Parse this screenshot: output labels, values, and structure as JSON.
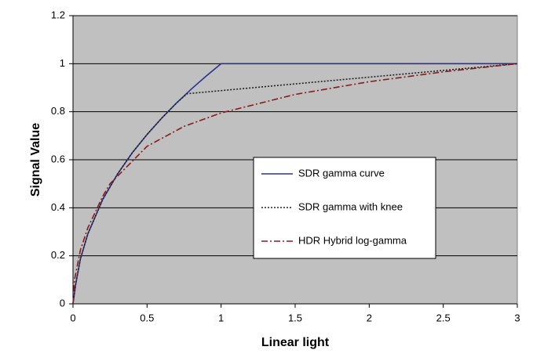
{
  "chart_data": {
    "type": "line",
    "xlabel": "Linear light",
    "ylabel": "Signal Value",
    "xlim": [
      0,
      3
    ],
    "ylim": [
      0,
      1.2
    ],
    "xticks": [
      0,
      0.5,
      1,
      1.5,
      2,
      2.5,
      3
    ],
    "yticks": [
      0,
      0.2,
      0.4,
      0.6,
      0.8,
      1,
      1.2
    ],
    "grid": true,
    "background": "#c0c0c0",
    "series": [
      {
        "name": "SDR gamma curve",
        "color": "#2e3192",
        "dash": "solid",
        "x": [
          0,
          0.018,
          0.05,
          0.1,
          0.2,
          0.3,
          0.4,
          0.5,
          0.6,
          0.7,
          0.8,
          0.9,
          1,
          3
        ],
        "values": [
          0,
          0.081,
          0.187,
          0.291,
          0.434,
          0.54,
          0.629,
          0.705,
          0.774,
          0.837,
          0.895,
          0.949,
          1,
          1
        ]
      },
      {
        "name": "SDR gamma with knee",
        "color": "#222222",
        "dash": "dotted",
        "x": [
          0,
          0.018,
          0.05,
          0.1,
          0.2,
          0.3,
          0.4,
          0.5,
          0.6,
          0.7,
          0.77,
          3
        ],
        "values": [
          0,
          0.081,
          0.187,
          0.291,
          0.434,
          0.54,
          0.629,
          0.705,
          0.774,
          0.837,
          0.875,
          1
        ]
      },
      {
        "name": "HDR Hybrid log-gamma",
        "color": "#8b1a1a",
        "dash": "dashdot",
        "x": [
          0,
          0.01,
          0.05,
          0.1,
          0.2,
          0.25,
          0.5,
          0.75,
          1,
          1.5,
          2,
          2.5,
          3
        ],
        "values": [
          0,
          0.1,
          0.224,
          0.316,
          0.447,
          0.5,
          0.656,
          0.739,
          0.795,
          0.872,
          0.925,
          0.966,
          1
        ]
      }
    ]
  }
}
